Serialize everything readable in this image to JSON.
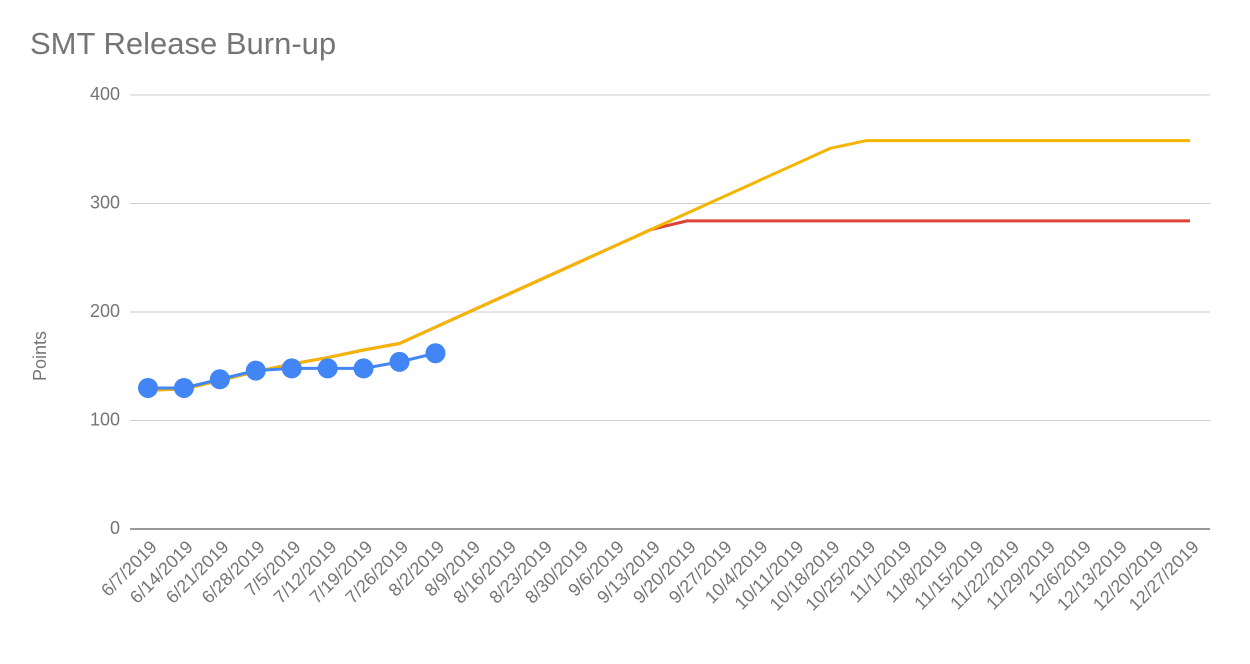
{
  "chart_data": {
    "type": "line",
    "title": "SMT Release Burn-up",
    "y_label": "Points",
    "categories": [
      "6/7/2019",
      "6/14/2019",
      "6/21/2019",
      "6/28/2019",
      "7/5/2019",
      "7/12/2019",
      "7/19/2019",
      "7/26/2019",
      "8/2/2019",
      "8/9/2019",
      "8/16/2019",
      "8/23/2019",
      "8/30/2019",
      "9/6/2019",
      "9/13/2019",
      "9/20/2019",
      "9/27/2019",
      "10/4/2019",
      "10/11/2019",
      "10/18/2019",
      "10/25/2019",
      "11/1/2019",
      "11/8/2019",
      "11/15/2019",
      "11/22/2019",
      "11/29/2019",
      "12/6/2019",
      "12/13/2019",
      "12/20/2019",
      "12/27/2019"
    ],
    "series": [
      {
        "color": "#db4437",
        "markers": false,
        "values": [
          128,
          129,
          137,
          145,
          152,
          158,
          165,
          171,
          186,
          201,
          216,
          231,
          246,
          261,
          276,
          284,
          284,
          284,
          284,
          284,
          284,
          284,
          284,
          284,
          284,
          284,
          284,
          284,
          284,
          284
        ]
      },
      {
        "color": "#f4b400",
        "markers": false,
        "values": [
          128,
          129,
          137,
          145,
          152,
          158,
          165,
          171,
          186,
          201,
          216,
          231,
          246,
          261,
          276,
          291,
          306,
          321,
          336,
          351,
          358,
          358,
          358,
          358,
          358,
          358,
          358,
          358,
          358,
          358
        ]
      },
      {
        "color": "#4285f4",
        "markers": true,
        "values": [
          130,
          130,
          138,
          146,
          148,
          148,
          148,
          154,
          162,
          null,
          null,
          null,
          null,
          null,
          null,
          null,
          null,
          null,
          null,
          null,
          null,
          null,
          null,
          null,
          null,
          null,
          null,
          null,
          null,
          null
        ]
      }
    ],
    "ylim": [
      0,
      400
    ],
    "yticks": [
      0,
      100,
      200,
      300,
      400
    ],
    "grid": true
  }
}
